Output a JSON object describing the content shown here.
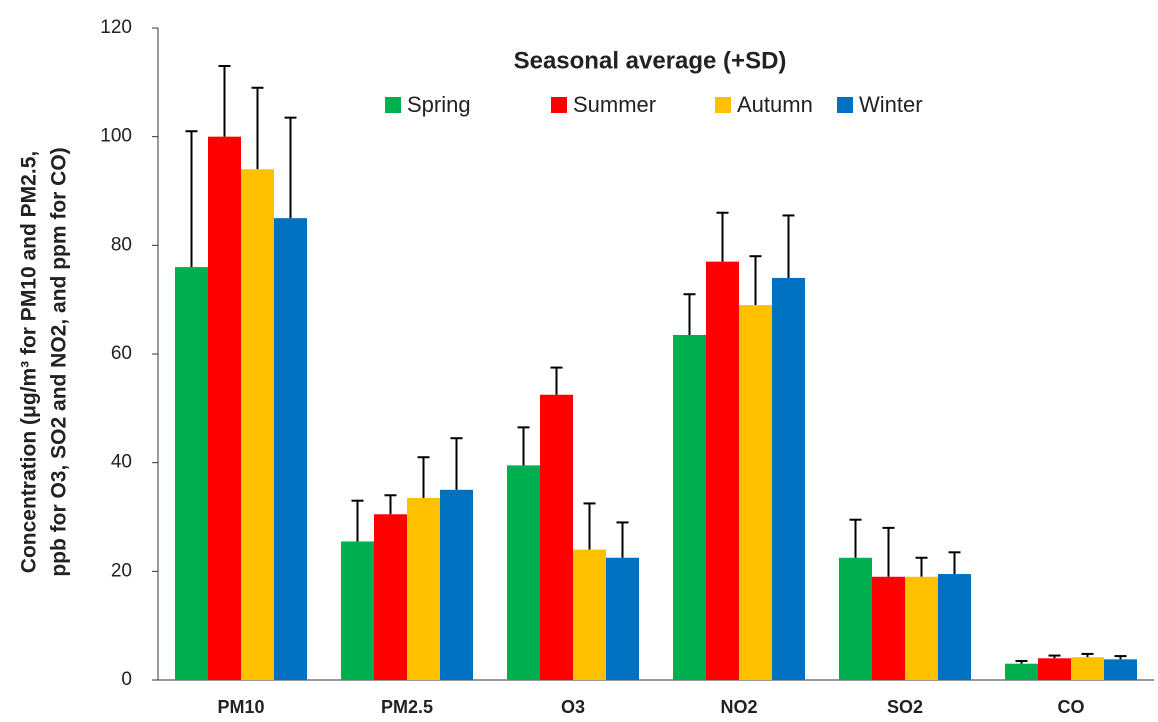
{
  "chart_data": {
    "type": "bar",
    "legend_title": "Seasonal average (+SD)",
    "ylabel": [
      "Concentration (μg/m³ for PM10 and PM2.5,",
      "ppb for O3, SO2 and NO2, and ppm for CO)"
    ],
    "categories": [
      "PM10",
      "PM2.5",
      "O3",
      "NO2",
      "SO2",
      "CO"
    ],
    "series": [
      {
        "name": "Spring",
        "color": "#00b050",
        "values": [
          76,
          25.5,
          39.5,
          63.5,
          22.5,
          3
        ],
        "errors": [
          25,
          7.5,
          7,
          7.5,
          7,
          0.5
        ]
      },
      {
        "name": "Summer",
        "color": "#ff0000",
        "values": [
          100,
          30.5,
          52.5,
          77,
          19,
          4
        ],
        "errors": [
          13,
          3.5,
          5,
          9,
          9,
          0.5
        ]
      },
      {
        "name": "Autumn",
        "color": "#ffc000",
        "values": [
          94,
          33.5,
          24,
          69,
          19,
          4.2
        ],
        "errors": [
          15,
          7.5,
          8.5,
          9,
          3.5,
          0.6
        ]
      },
      {
        "name": "Winter",
        "color": "#0070c0",
        "values": [
          85,
          35,
          22.5,
          74,
          19.5,
          3.8
        ],
        "errors": [
          18.5,
          9.5,
          6.5,
          11.5,
          4,
          0.6
        ]
      }
    ],
    "ylim": [
      0,
      120
    ],
    "yticks": [
      0,
      20,
      40,
      60,
      80,
      100,
      120
    ],
    "grid": false
  }
}
